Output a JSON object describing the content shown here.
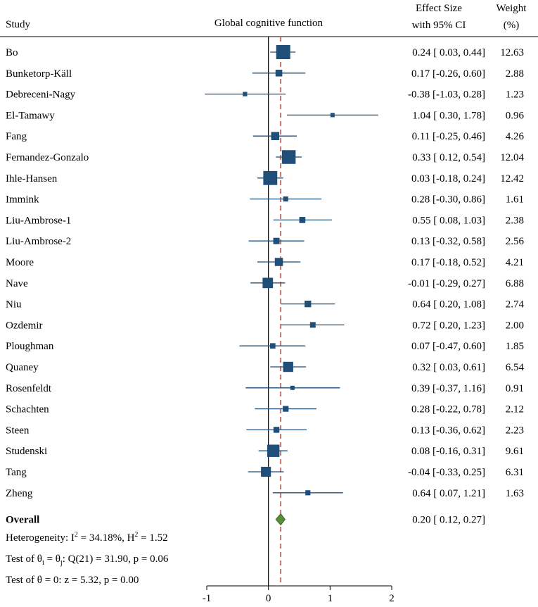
{
  "chart_data": {
    "type": "forest",
    "title": "Global cognitive function",
    "headers": {
      "study": "Study",
      "effect_line1": "Effect Size",
      "effect_line2": "with 95% CI",
      "weight_line1": "Weight",
      "weight_line2": "(%)"
    },
    "xlim": [
      -1,
      2
    ],
    "x_ticks": [
      -1,
      0,
      1,
      2
    ],
    "reference_line": 0,
    "overall_line": 0.2,
    "studies": [
      {
        "name": "Bo",
        "es": 0.24,
        "lo": 0.03,
        "hi": 0.44,
        "weight": 12.63,
        "label": "0.24 [ 0.03, 0.44]",
        "weight_label": "12.63"
      },
      {
        "name": "Bunketorp-Käll",
        "es": 0.17,
        "lo": -0.26,
        "hi": 0.6,
        "weight": 2.88,
        "label": "0.17 [-0.26, 0.60]",
        "weight_label": "2.88"
      },
      {
        "name": "Debreceni-Nagy",
        "es": -0.38,
        "lo": -1.03,
        "hi": 0.28,
        "weight": 1.23,
        "label": "-0.38 [-1.03, 0.28]",
        "weight_label": "1.23"
      },
      {
        "name": "El-Tamawy",
        "es": 1.04,
        "lo": 0.3,
        "hi": 1.78,
        "weight": 0.96,
        "label": "1.04 [ 0.30, 1.78]",
        "weight_label": "0.96"
      },
      {
        "name": "Fang",
        "es": 0.11,
        "lo": -0.25,
        "hi": 0.46,
        "weight": 4.26,
        "label": "0.11 [-0.25, 0.46]",
        "weight_label": "4.26"
      },
      {
        "name": "Fernandez-Gonzalo",
        "es": 0.33,
        "lo": 0.12,
        "hi": 0.54,
        "weight": 12.04,
        "label": "0.33 [ 0.12, 0.54]",
        "weight_label": "12.04"
      },
      {
        "name": "Ihle-Hansen",
        "es": 0.03,
        "lo": -0.18,
        "hi": 0.24,
        "weight": 12.42,
        "label": "0.03 [-0.18, 0.24]",
        "weight_label": "12.42"
      },
      {
        "name": "Immink",
        "es": 0.28,
        "lo": -0.3,
        "hi": 0.86,
        "weight": 1.61,
        "label": "0.28 [-0.30, 0.86]",
        "weight_label": "1.61"
      },
      {
        "name": "Liu-Ambrose-1",
        "es": 0.55,
        "lo": 0.08,
        "hi": 1.03,
        "weight": 2.38,
        "label": "0.55 [ 0.08, 1.03]",
        "weight_label": "2.38"
      },
      {
        "name": "Liu-Ambrose-2",
        "es": 0.13,
        "lo": -0.32,
        "hi": 0.58,
        "weight": 2.56,
        "label": "0.13 [-0.32, 0.58]",
        "weight_label": "2.56"
      },
      {
        "name": "Moore",
        "es": 0.17,
        "lo": -0.18,
        "hi": 0.52,
        "weight": 4.21,
        "label": "0.17 [-0.18, 0.52]",
        "weight_label": "4.21"
      },
      {
        "name": "Nave",
        "es": -0.01,
        "lo": -0.29,
        "hi": 0.27,
        "weight": 6.88,
        "label": "-0.01 [-0.29, 0.27]",
        "weight_label": "6.88"
      },
      {
        "name": "Niu",
        "es": 0.64,
        "lo": 0.2,
        "hi": 1.08,
        "weight": 2.74,
        "label": "0.64 [ 0.20, 1.08]",
        "weight_label": "2.74"
      },
      {
        "name": "Ozdemir",
        "es": 0.72,
        "lo": 0.2,
        "hi": 1.23,
        "weight": 2.0,
        "label": "0.72 [ 0.20, 1.23]",
        "weight_label": "2.00"
      },
      {
        "name": "Ploughman",
        "es": 0.07,
        "lo": -0.47,
        "hi": 0.6,
        "weight": 1.85,
        "label": "0.07 [-0.47, 0.60]",
        "weight_label": "1.85"
      },
      {
        "name": "Quaney",
        "es": 0.32,
        "lo": 0.03,
        "hi": 0.61,
        "weight": 6.54,
        "label": "0.32 [ 0.03, 0.61]",
        "weight_label": "6.54"
      },
      {
        "name": "Rosenfeldt",
        "es": 0.39,
        "lo": -0.37,
        "hi": 1.16,
        "weight": 0.91,
        "label": "0.39 [-0.37, 1.16]",
        "weight_label": "0.91"
      },
      {
        "name": "Schachten",
        "es": 0.28,
        "lo": -0.22,
        "hi": 0.78,
        "weight": 2.12,
        "label": "0.28 [-0.22, 0.78]",
        "weight_label": "2.12"
      },
      {
        "name": "Steen",
        "es": 0.13,
        "lo": -0.36,
        "hi": 0.62,
        "weight": 2.23,
        "label": "0.13 [-0.36, 0.62]",
        "weight_label": "2.23"
      },
      {
        "name": "Studenski",
        "es": 0.08,
        "lo": -0.16,
        "hi": 0.31,
        "weight": 9.61,
        "label": "0.08 [-0.16, 0.31]",
        "weight_label": "9.61"
      },
      {
        "name": "Tang",
        "es": -0.04,
        "lo": -0.33,
        "hi": 0.25,
        "weight": 6.31,
        "label": "-0.04 [-0.33, 0.25]",
        "weight_label": "6.31"
      },
      {
        "name": "Zheng",
        "es": 0.64,
        "lo": 0.07,
        "hi": 1.21,
        "weight": 1.63,
        "label": "0.64 [ 0.07, 1.21]",
        "weight_label": "1.63"
      }
    ],
    "overall": {
      "name": "Overall",
      "es": 0.2,
      "lo": 0.12,
      "hi": 0.27,
      "label": "0.20 [ 0.12, 0.27]"
    },
    "stats": [
      {
        "prefix": "Heterogeneity: I",
        "sup1": "2",
        "mid": " = 34.18%, H",
        "sup2": "2",
        "suffix": " = 1.52"
      },
      {
        "prefix": "Test of θ",
        "sub1": "i",
        "mid": " = θ",
        "sub2": "j",
        "suffix": ": Q(21) = 31.90, p = 0.06"
      },
      {
        "prefix": "Test of θ = 0: z = 5.32, p = 0.00"
      }
    ],
    "colors": {
      "marker": "#1f4e79",
      "ci_line": "#1f4e79",
      "overall_diamond": "#5a8a3a",
      "overall_line": "#c0392b",
      "axis": "#000000"
    }
  }
}
